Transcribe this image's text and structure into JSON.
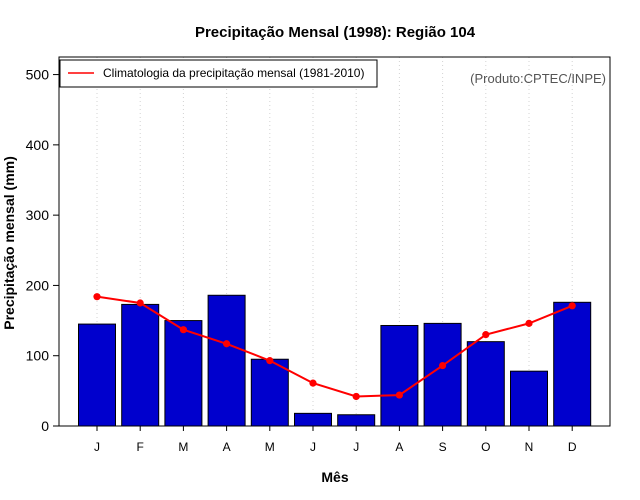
{
  "chart_data": {
    "type": "bar",
    "title": "Precipitação Mensal (1998): Região 104",
    "xlabel": "Mês",
    "ylabel": "Precipitação mensal (mm)",
    "credit": "(Produto:CPTEC/INPE)",
    "categories": [
      "J",
      "F",
      "M",
      "A",
      "M",
      "J",
      "J",
      "A",
      "S",
      "O",
      "N",
      "D"
    ],
    "ylim": [
      0,
      525
    ],
    "yticks": [
      0,
      100,
      200,
      300,
      400,
      500
    ],
    "grid": "vertical dotted",
    "legend_position": "top-left",
    "series": [
      {
        "name": "Precipitação mensal (1998)",
        "kind": "bar",
        "color": "#0000cd",
        "values": [
          145,
          173,
          150,
          186,
          95,
          18,
          16,
          143,
          146,
          120,
          78,
          176
        ]
      },
      {
        "name": "Climatologia da precipitação mensal (1981-2010)",
        "kind": "line",
        "color": "#ff0000",
        "values": [
          184,
          175,
          137,
          117,
          93,
          61,
          42,
          44,
          86,
          130,
          146,
          171
        ]
      }
    ]
  }
}
